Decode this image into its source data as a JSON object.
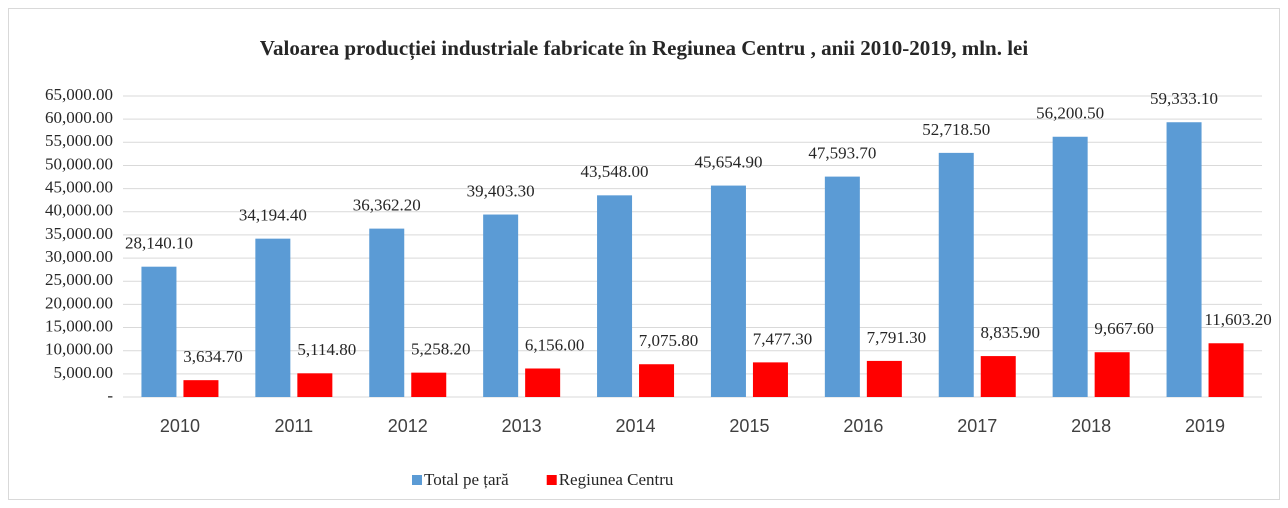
{
  "chart_data": {
    "type": "bar",
    "title": "Valoarea producției industriale fabricate în Regiunea Centru , anii 2010-2019, mln. lei",
    "categories": [
      "2010",
      "2011",
      "2012",
      "2013",
      "2014",
      "2015",
      "2016",
      "2017",
      "2018",
      "2019"
    ],
    "series": [
      {
        "name": "Total pe țară",
        "color": "#5b9bd5",
        "values": [
          28140.1,
          34194.4,
          36362.2,
          39403.3,
          43548,
          45654.9,
          47593.7,
          52718.5,
          56200.5,
          59333.1
        ],
        "value_labels": [
          "28,140.10",
          "34,194.40",
          "36,362.20",
          "39,403.30",
          "43,548.00",
          "45,654.90",
          "47,593.70",
          "52,718.50",
          "56,200.50",
          "59,333.10"
        ]
      },
      {
        "name": "Regiunea Centru",
        "color": "#ff0000",
        "values": [
          3634.7,
          5114.8,
          5258.2,
          6156,
          7075.8,
          7477.3,
          7791.3,
          8835.9,
          9667.6,
          11603.2
        ],
        "value_labels": [
          "3,634.70",
          "5,114.80",
          "5,258.20",
          "6,156.00",
          "7,075.80",
          "7,477.30",
          "7,791.30",
          "8,835.90",
          "9,667.60",
          "11,603.20"
        ]
      }
    ],
    "ylim": [
      0,
      65000
    ],
    "yticks": [
      {
        "value": 0,
        "label": "-"
      },
      {
        "value": 5000,
        "label": "5,000.00"
      },
      {
        "value": 10000,
        "label": "10,000.00"
      },
      {
        "value": 15000,
        "label": "15,000.00"
      },
      {
        "value": 20000,
        "label": "20,000.00"
      },
      {
        "value": 25000,
        "label": "25,000.00"
      },
      {
        "value": 30000,
        "label": "30,000.00"
      },
      {
        "value": 35000,
        "label": "35,000.00"
      },
      {
        "value": 40000,
        "label": "40,000.00"
      },
      {
        "value": 45000,
        "label": "45,000.00"
      },
      {
        "value": 50000,
        "label": "50,000.00"
      },
      {
        "value": 55000,
        "label": "55,000.00"
      },
      {
        "value": 60000,
        "label": "60,000.00"
      },
      {
        "value": 65000,
        "label": "65,000.00"
      }
    ],
    "grid": true,
    "legend": "bottom"
  }
}
